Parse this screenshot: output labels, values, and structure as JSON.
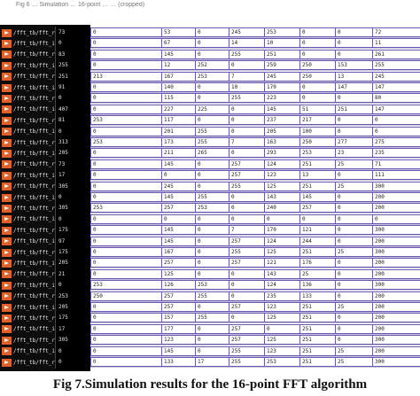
{
  "header_text": "Fig 6 … Simulation … 16-point … … (cropped)",
  "caption": "Fig 7.Simulation results for the 16-point FFT algorithm",
  "colors": {
    "name_panel": "#0d0d0d",
    "arrow": "#e0602a",
    "trace": "#6a58b0"
  },
  "signals": [
    {
      "name": "/fft_tb/fft_re_0",
      "value": "73",
      "segs": [
        "0",
        "53",
        "0",
        "245",
        "253",
        "0",
        "0",
        "72"
      ]
    },
    {
      "name": "/fft_tb/fft_im_0",
      "value": "0",
      "segs": [
        "0",
        "67",
        "0",
        "14",
        "10",
        "0",
        "0",
        "11"
      ]
    },
    {
      "name": "/fft_tb/fft_re_1",
      "value": "83",
      "segs": [
        "0",
        "145",
        "0",
        "255",
        "251",
        "0",
        "0",
        "261"
      ]
    },
    {
      "name": "/fft_tb/fft_im_1",
      "value": "255",
      "segs": [
        "0",
        "12",
        "252",
        "0",
        "259",
        "250",
        "153",
        "255"
      ]
    },
    {
      "name": "/fft_tb/fft_re_2",
      "value": "251",
      "segs": [
        "213",
        "167",
        "253",
        "7",
        "245",
        "250",
        "13",
        "245"
      ]
    },
    {
      "name": "/fft_tb/fft_im_2",
      "value": "91",
      "segs": [
        "0",
        "140",
        "0",
        "10",
        "170",
        "0",
        "147",
        "147"
      ]
    },
    {
      "name": "/fft_tb/fft_re_3",
      "value": "0",
      "segs": [
        "0",
        "115",
        "0",
        "255",
        "223",
        "0",
        "0",
        "80"
      ]
    },
    {
      "name": "/fft_tb/fft_im_3",
      "value": "407",
      "segs": [
        "0",
        "227",
        "225",
        "0",
        "145",
        "51",
        "251",
        "147"
      ]
    },
    {
      "name": "/fft_tb/fft_re_4",
      "value": "81",
      "segs": [
        "253",
        "117",
        "0",
        "0",
        "237",
        "217",
        "0",
        "0"
      ]
    },
    {
      "name": "/fft_tb/fft_im_4",
      "value": "0",
      "segs": [
        "0",
        "201",
        "255",
        "0",
        "205",
        "100",
        "0",
        "0"
      ]
    },
    {
      "name": "/fft_tb/fft_re_5",
      "value": "313",
      "segs": [
        "253",
        "173",
        "255",
        "7",
        "163",
        "250",
        "277",
        "275"
      ]
    },
    {
      "name": "/fft_tb/fft_im_5",
      "value": "205",
      "segs": [
        "0",
        "211",
        "265",
        "0",
        "293",
        "253",
        "23",
        "235"
      ]
    },
    {
      "name": "/fft_tb/fft_re_6",
      "value": "73",
      "segs": [
        "0",
        "145",
        "0",
        "257",
        "124",
        "251",
        "25",
        "71"
      ]
    },
    {
      "name": "/fft_tb/fft_im_6",
      "value": "17",
      "segs": [
        "0",
        "0",
        "0",
        "257",
        "123",
        "13",
        "0",
        "111"
      ]
    },
    {
      "name": "/fft_tb/fft_re_7",
      "value": "305",
      "segs": [
        "0",
        "245",
        "0",
        "255",
        "125",
        "251",
        "25",
        "300"
      ]
    },
    {
      "name": "/fft_tb/fft_im_7",
      "value": "0",
      "segs": [
        "0",
        "145",
        "255",
        "0",
        "143",
        "145",
        "0",
        "200"
      ]
    },
    {
      "name": "/fft_tb/fft_re_8",
      "value": "305",
      "segs": [
        "253",
        "257",
        "253",
        "0",
        "240",
        "257",
        "0",
        "200"
      ]
    },
    {
      "name": "/fft_tb/fft_im_8",
      "value": "0",
      "segs": [
        "0",
        "0",
        "0",
        "0",
        "0",
        "0",
        "0",
        "0"
      ]
    },
    {
      "name": "/fft_tb/fft_re_9",
      "value": "175",
      "segs": [
        "0",
        "145",
        "0",
        "7",
        "170",
        "121",
        "0",
        "300"
      ]
    },
    {
      "name": "/fft_tb/fft_im_9",
      "value": "97",
      "segs": [
        "0",
        "145",
        "0",
        "257",
        "124",
        "244",
        "0",
        "200"
      ]
    },
    {
      "name": "/fft_tb/fft_re_10",
      "value": "175",
      "segs": [
        "0",
        "167",
        "0",
        "255",
        "125",
        "251",
        "25",
        "300"
      ]
    },
    {
      "name": "/fft_tb/fft_im_10",
      "value": "205",
      "segs": [
        "0",
        "257",
        "0",
        "257",
        "121",
        "176",
        "0",
        "200"
      ]
    },
    {
      "name": "/fft_tb/fft_re_11",
      "value": "21",
      "segs": [
        "0",
        "125",
        "0",
        "0",
        "143",
        "25",
        "0",
        "200"
      ]
    },
    {
      "name": "/fft_tb/fft_im_11",
      "value": "0",
      "segs": [
        "253",
        "126",
        "253",
        "0",
        "124",
        "136",
        "0",
        "300"
      ]
    },
    {
      "name": "/fft_tb/fft_re_12",
      "value": "253",
      "segs": [
        "250",
        "257",
        "255",
        "0",
        "235",
        "133",
        "0",
        "200"
      ]
    },
    {
      "name": "/fft_tb/fft_im_12",
      "value": "205",
      "segs": [
        "0",
        "257",
        "0",
        "257",
        "123",
        "251",
        "25",
        "200"
      ]
    },
    {
      "name": "/fft_tb/fft_re_13",
      "value": "175",
      "segs": [
        "0",
        "157",
        "255",
        "0",
        "125",
        "251",
        "0",
        "200"
      ]
    },
    {
      "name": "/fft_tb/fft_im_13",
      "value": "17",
      "segs": [
        "0",
        "177",
        "0",
        "257",
        "0",
        "251",
        "0",
        "200"
      ]
    },
    {
      "name": "/fft_tb/fft_re_14",
      "value": "305",
      "segs": [
        "0",
        "123",
        "0",
        "257",
        "125",
        "251",
        "0",
        "300"
      ]
    },
    {
      "name": "/fft_tb/fft_im_14",
      "value": "0",
      "segs": [
        "0",
        "145",
        "0",
        "255",
        "123",
        "251",
        "25",
        "200"
      ]
    },
    {
      "name": "/fft_tb/fft_re_15",
      "value": "0",
      "segs": [
        "0",
        "133",
        "17",
        "255",
        "253",
        "251",
        "25",
        "300"
      ]
    }
  ]
}
